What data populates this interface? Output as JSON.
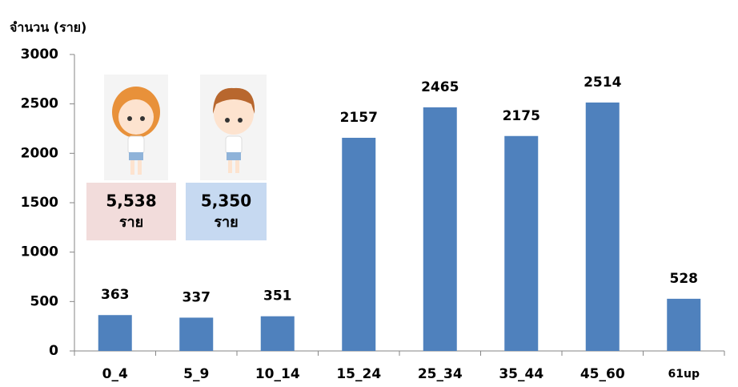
{
  "chart_data": {
    "type": "bar",
    "y_axis_label": "จำนวน (ราย)",
    "categories": [
      "0_4",
      "5_9",
      "10_14",
      "15_24",
      "25_34",
      "35_44",
      "45_60",
      "61up"
    ],
    "values": [
      363,
      337,
      351,
      2157,
      2465,
      2175,
      2514,
      528
    ],
    "color": "#4f81bd",
    "ylim": [
      0,
      3000
    ],
    "yticks": [
      0,
      500,
      1000,
      1500,
      2000,
      2500,
      3000
    ],
    "annotations": [
      {
        "text": "5,538",
        "unit": "ราย",
        "color": "#f2dcdb"
      },
      {
        "text": "5,350",
        "unit": "ราย",
        "color": "#c6d9f1"
      }
    ]
  }
}
